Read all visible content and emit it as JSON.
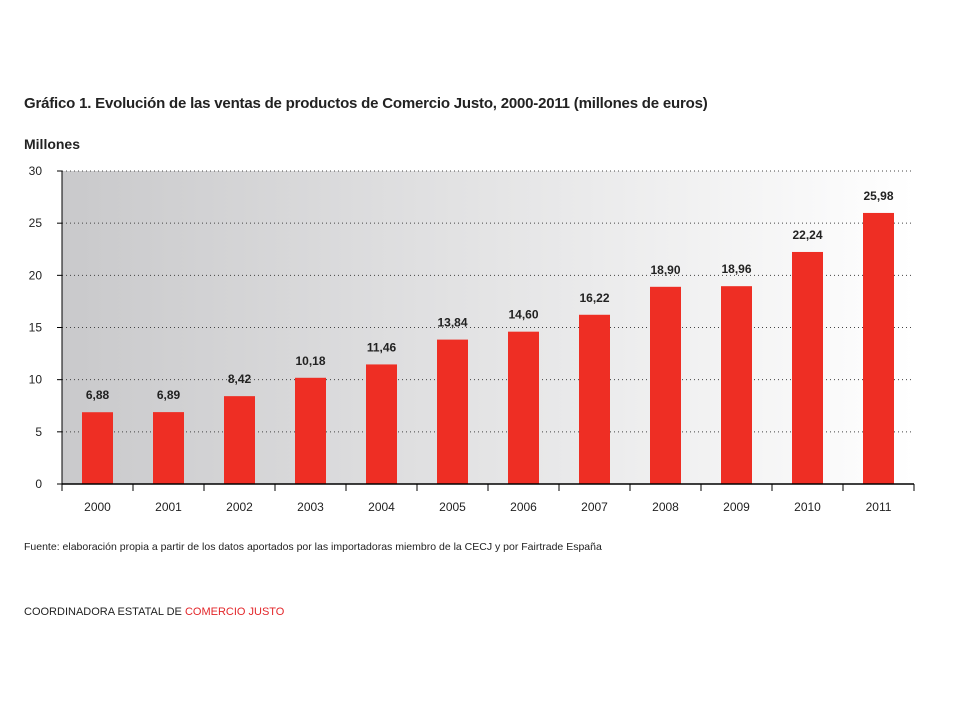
{
  "page": {
    "title": "Gráfico 1. Evolución de las ventas de productos de Comercio Justo, 2000-2011 (millones de euros)",
    "source": "Fuente: elaboración propia a partir de los datos aportados por las importadoras miembro de la CECJ y por Fairtrade España",
    "brand_prefix": "COORDINADORA ESTATAL DE ",
    "brand_highlight": "COMERCIO JUSTO"
  },
  "colors": {
    "bar": "#ee2e24",
    "accent": "#e3262a",
    "gradient_left": "#c9c9cb",
    "gradient_right": "#ffffff"
  },
  "chart_data": {
    "type": "bar",
    "title": "Gráfico 1. Evolución de las ventas de productos de Comercio Justo, 2000-2011 (millones de euros)",
    "ylabel": "Millones",
    "xlabel": "",
    "categories": [
      "2000",
      "2001",
      "2002",
      "2003",
      "2004",
      "2005",
      "2006",
      "2007",
      "2008",
      "2009",
      "2010",
      "2011"
    ],
    "values": [
      6.88,
      6.89,
      8.42,
      10.18,
      11.46,
      13.84,
      14.6,
      16.22,
      18.9,
      18.96,
      22.24,
      25.98
    ],
    "data_labels": [
      "6,88",
      "6,89",
      "8,42",
      "10,18",
      "11,46",
      "13,84",
      "14,60",
      "16,22",
      "18,90",
      "18,96",
      "22,24",
      "25,98"
    ],
    "ylim": [
      0,
      30
    ],
    "yticks": [
      0,
      5,
      10,
      15,
      20,
      25,
      30
    ],
    "grid": true,
    "grid_style": "dotted",
    "legend": "none"
  }
}
